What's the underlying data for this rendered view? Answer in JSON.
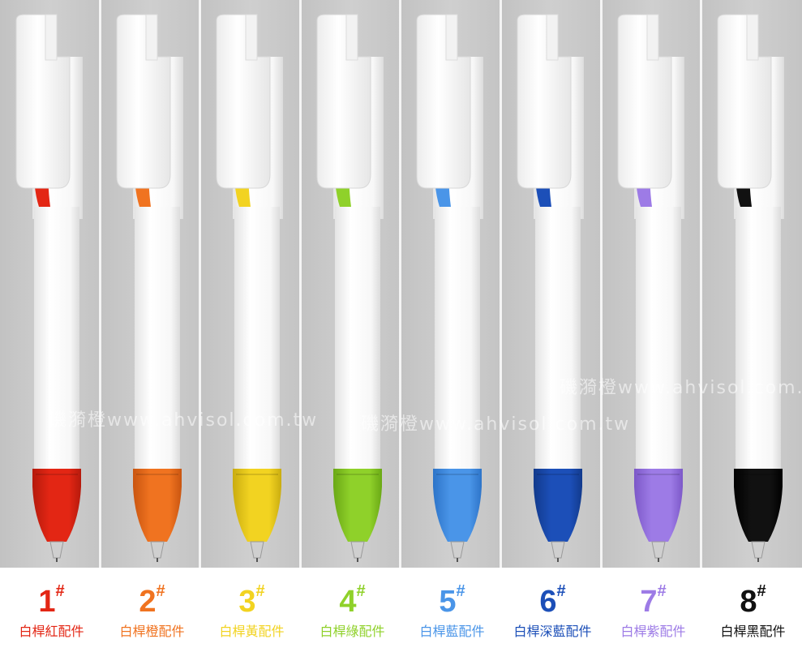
{
  "pens": [
    {
      "num": "1",
      "hash": "#",
      "caption": "白桿紅配件",
      "color": "#e32614",
      "dark": "#b51a0c"
    },
    {
      "num": "2",
      "hash": "#",
      "caption": "白桿橙配件",
      "color": "#f07320",
      "dark": "#c95510"
    },
    {
      "num": "3",
      "hash": "#",
      "caption": "白桿黃配件",
      "color": "#f2d321",
      "dark": "#c9ac10"
    },
    {
      "num": "4",
      "hash": "#",
      "caption": "白桿綠配件",
      "color": "#8fd12a",
      "dark": "#6aa815"
    },
    {
      "num": "5",
      "hash": "#",
      "caption": "白桿藍配件",
      "color": "#4a95e8",
      "dark": "#2d74c8"
    },
    {
      "num": "6",
      "hash": "#",
      "caption": "白桿深藍配件",
      "color": "#1c4fb8",
      "dark": "#123a8c"
    },
    {
      "num": "7",
      "hash": "#",
      "caption": "白桿紫配件",
      "color": "#9d7be6",
      "dark": "#7c58c8"
    },
    {
      "num": "8",
      "hash": "#",
      "caption": "白桿黑配件",
      "color": "#111111",
      "dark": "#000000"
    }
  ],
  "watermarks": [
    "磯漪橙www.ahvisol.com.tw",
    "磯漪橙www.ahvisol.com.tw",
    "磯漪橙www.ahvisol.com.tw"
  ]
}
